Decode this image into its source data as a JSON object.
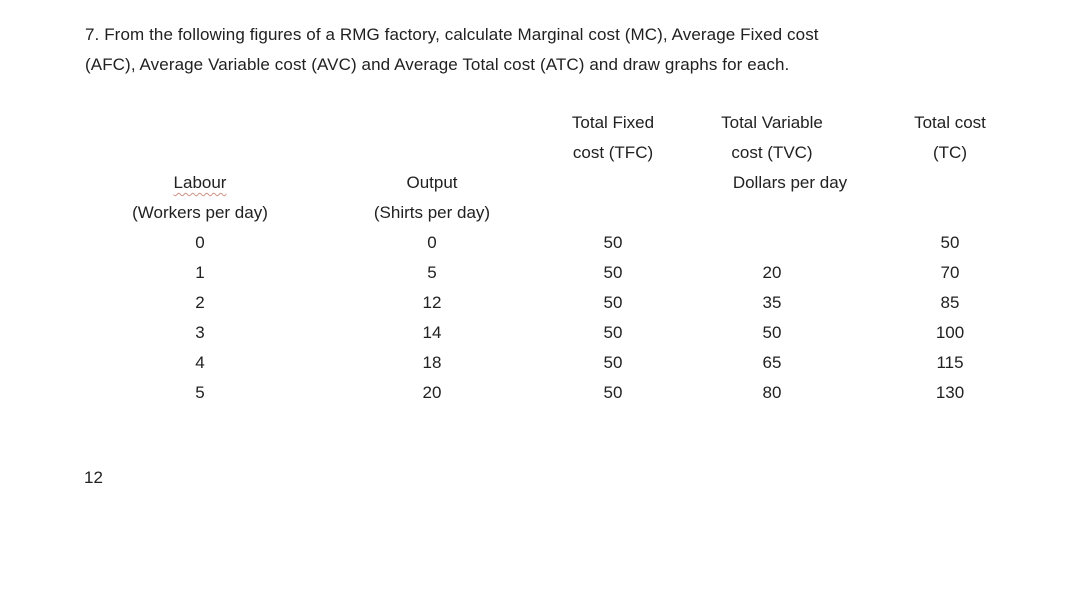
{
  "document": {
    "question_lines": [
      "7. From the following figures of a RMG factory, calculate Marginal cost (MC), Average Fixed cost",
      "(AFC), Average Variable cost (AVC) and Average Total cost (ATC) and draw graphs for each."
    ],
    "page_number": "12"
  },
  "table": {
    "headers": {
      "labour": [
        "Labour",
        "(Workers per day)"
      ],
      "output": [
        "Output",
        "(Shirts per day)"
      ],
      "tfc": [
        "Total Fixed",
        "cost (TFC)"
      ],
      "tvc": [
        "Total Variable",
        "cost (TVC)",
        "Dollars per day"
      ],
      "tc": [
        "Total cost",
        "(TC)"
      ]
    },
    "rows": [
      {
        "labour": "0",
        "output": "0",
        "tfc": "50",
        "tvc": "",
        "tc": "50"
      },
      {
        "labour": "1",
        "output": "5",
        "tfc": "50",
        "tvc": "20",
        "tc": "70"
      },
      {
        "labour": "2",
        "output": "12",
        "tfc": "50",
        "tvc": "35",
        "tc": "85"
      },
      {
        "labour": "3",
        "output": "14",
        "tfc": "50",
        "tvc": "50",
        "tc": "100"
      },
      {
        "labour": "4",
        "output": "18",
        "tfc": "50",
        "tvc": "65",
        "tc": "115"
      },
      {
        "labour": "5",
        "output": "20",
        "tfc": "50",
        "tvc": "80",
        "tc": "130"
      }
    ]
  },
  "colors": {
    "text": "#212121",
    "background": "#ffffff",
    "spellcheck_underline": "#cf9283"
  }
}
